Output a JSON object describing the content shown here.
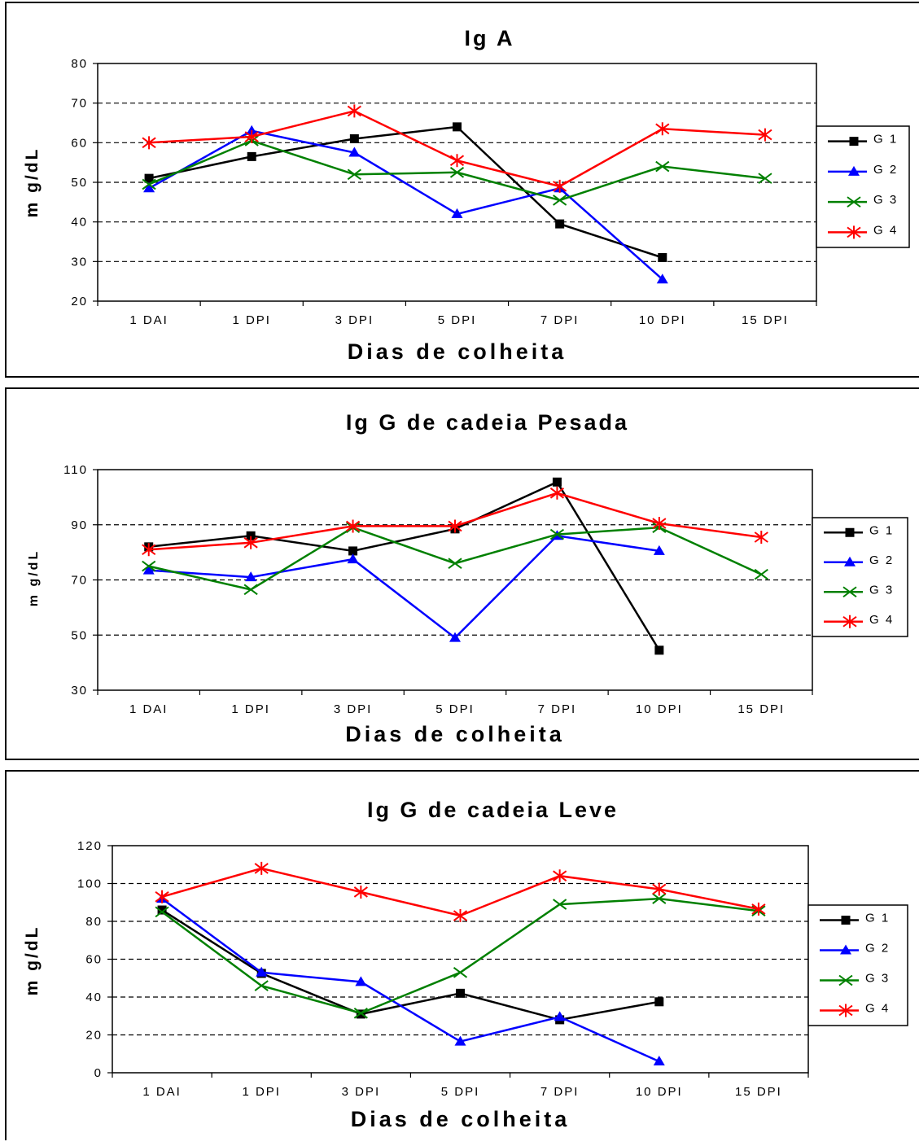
{
  "chart_data": [
    {
      "type": "line",
      "title": "Ig A",
      "xlabel": "Dias de colheita",
      "ylabel": "m g/dL",
      "categories": [
        "1 DAI",
        "1 DPI",
        "3 DPI",
        "5 DPI",
        "7 DPI",
        "10 DPI",
        "15 DPI"
      ],
      "ylim": [
        20,
        80
      ],
      "yticks": [
        20,
        30,
        40,
        50,
        60,
        70,
        80
      ],
      "grid": "dashed horizontal",
      "legend": "right",
      "series": [
        {
          "name": "G 1",
          "color": "#000000",
          "marker": "square",
          "values": [
            51,
            56.5,
            61,
            64,
            39.5,
            31,
            null
          ]
        },
        {
          "name": "G 2",
          "color": "#0000ff",
          "marker": "triangle",
          "values": [
            48.5,
            63,
            57.5,
            42,
            48.5,
            25.5,
            null
          ]
        },
        {
          "name": "G 3",
          "color": "#008000",
          "marker": "x",
          "values": [
            49.5,
            60.5,
            52,
            52.5,
            45.5,
            54,
            51
          ]
        },
        {
          "name": "G 4",
          "color": "#ff0000",
          "marker": "asterisk",
          "values": [
            60,
            61.5,
            68,
            55.5,
            49,
            63.5,
            62
          ]
        }
      ]
    },
    {
      "type": "line",
      "title": "Ig G de cadeia Pesada",
      "xlabel": "Dias de colheita",
      "ylabel": "m g/dL",
      "categories": [
        "1 DAI",
        "1 DPI",
        "3 DPI",
        "5 DPI",
        "7 DPI",
        "10 DPI",
        "15 DPI"
      ],
      "ylim": [
        30,
        110
      ],
      "yticks": [
        30,
        50,
        70,
        90,
        110
      ],
      "grid": "dashed horizontal",
      "legend": "right",
      "series": [
        {
          "name": "G 1",
          "color": "#000000",
          "marker": "square",
          "values": [
            82,
            86,
            80.5,
            88.5,
            105.5,
            44.5,
            null
          ]
        },
        {
          "name": "G 2",
          "color": "#0000ff",
          "marker": "triangle",
          "values": [
            73.5,
            71,
            77.5,
            49,
            86,
            80.5,
            null
          ]
        },
        {
          "name": "G 3",
          "color": "#008000",
          "marker": "x",
          "values": [
            75,
            66.5,
            89,
            76,
            86.5,
            89,
            72
          ]
        },
        {
          "name": "G 4",
          "color": "#ff0000",
          "marker": "asterisk",
          "values": [
            81,
            83.5,
            89.5,
            89.5,
            101.5,
            90.5,
            85.5
          ]
        }
      ]
    },
    {
      "type": "line",
      "title": "Ig G de cadeia Leve",
      "xlabel": "Dias de colheita",
      "ylabel": "m g/dL",
      "categories": [
        "1 DAI",
        "1 DPI",
        "3 DPI",
        "5 DPI",
        "7 DPI",
        "10 DPI",
        "15 DPI"
      ],
      "ylim": [
        0,
        120
      ],
      "yticks": [
        0,
        20,
        40,
        60,
        80,
        100,
        120
      ],
      "grid": "dashed horizontal",
      "legend": "right",
      "series": [
        {
          "name": "G 1",
          "color": "#000000",
          "marker": "square",
          "values": [
            86,
            52.5,
            31,
            42,
            28,
            37.5,
            null
          ]
        },
        {
          "name": "G 2",
          "color": "#0000ff",
          "marker": "triangle",
          "values": [
            92,
            53,
            48,
            16.5,
            29.5,
            6,
            null
          ]
        },
        {
          "name": "G 3",
          "color": "#008000",
          "marker": "x",
          "values": [
            85,
            46,
            31.5,
            53,
            89,
            92,
            85.5
          ]
        },
        {
          "name": "G 4",
          "color": "#ff0000",
          "marker": "asterisk",
          "values": [
            93,
            108,
            95.5,
            83,
            104,
            97,
            86.5
          ]
        }
      ]
    }
  ]
}
